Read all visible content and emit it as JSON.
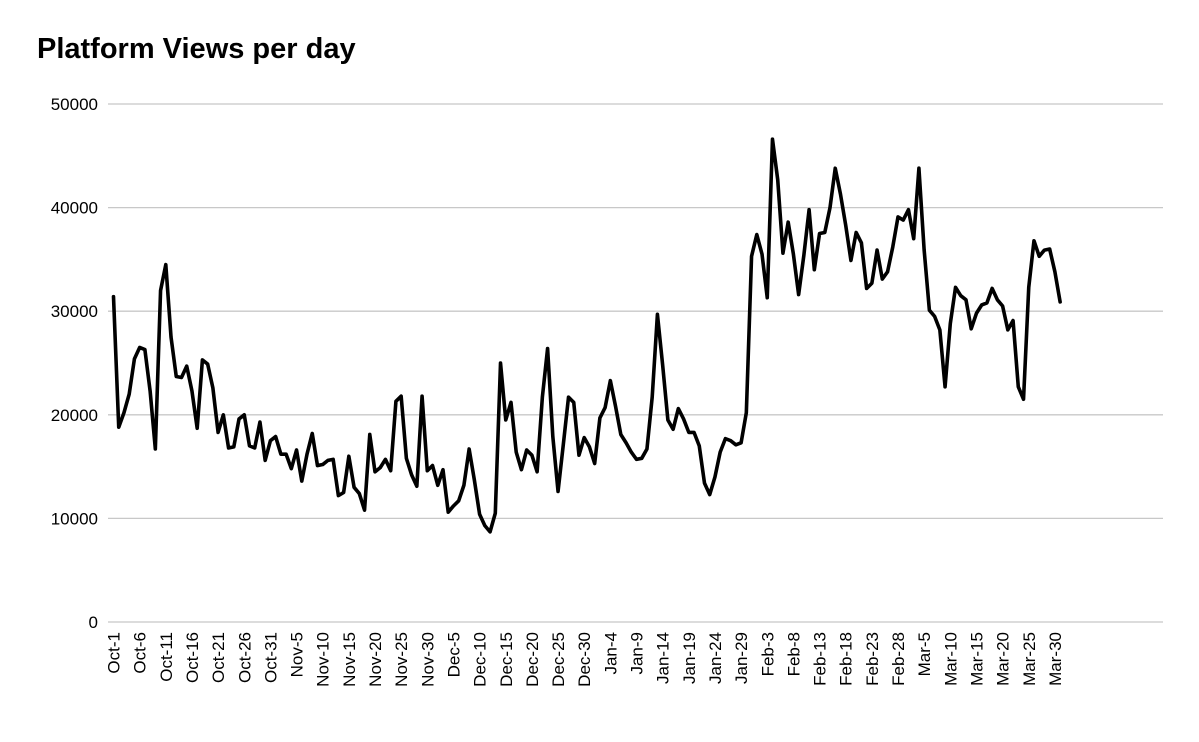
{
  "chart_data": {
    "type": "line",
    "title": "Platform Views per day",
    "xlabel": "",
    "ylabel": "",
    "ylim": [
      0,
      50000
    ],
    "yticks": [
      0,
      10000,
      20000,
      30000,
      40000,
      50000
    ],
    "grid": true,
    "legend": "none",
    "x_tick_labels": [
      "Oct-1",
      "Oct-6",
      "Oct-11",
      "Oct-16",
      "Oct-21",
      "Oct-26",
      "Oct-31",
      "Nov-5",
      "Nov-10",
      "Nov-15",
      "Nov-20",
      "Nov-25",
      "Nov-30",
      "Dec-5",
      "Dec-10",
      "Dec-15",
      "Dec-20",
      "Dec-25",
      "Dec-30",
      "Jan-4",
      "Jan-9",
      "Jan-14",
      "Jan-19",
      "Jan-24",
      "Jan-29",
      "Feb-3",
      "Feb-8",
      "Feb-13",
      "Feb-18",
      "Feb-23",
      "Feb-28",
      "Mar-5",
      "Mar-10",
      "Mar-15",
      "Mar-20",
      "Mar-25",
      "Mar-30"
    ],
    "series": [
      {
        "color": "#000000",
        "values": [
          31400,
          18800,
          20200,
          22000,
          25400,
          26500,
          26300,
          22300,
          16700,
          32000,
          34500,
          27500,
          23700,
          23600,
          24700,
          22300,
          18700,
          25300,
          24900,
          22600,
          18300,
          20000,
          16800,
          16900,
          19600,
          20000,
          17000,
          16800,
          19300,
          15600,
          17500,
          17900,
          16200,
          16200,
          14800,
          16600,
          13600,
          16200,
          18200,
          15100,
          15200,
          15600,
          15700,
          12200,
          12500,
          16000,
          13000,
          12400,
          10800,
          18100,
          14500,
          14900,
          15700,
          14600,
          21300,
          21800,
          15800,
          14200,
          13100,
          21800,
          14600,
          15100,
          13200,
          14700,
          10600,
          11200,
          11700,
          13200,
          16700,
          13700,
          10400,
          9300,
          8700,
          10500,
          25000,
          19500,
          21200,
          16400,
          14700,
          16600,
          16100,
          14500,
          21700,
          26400,
          17900,
          12600,
          17100,
          21700,
          21200,
          16100,
          17800,
          16900,
          15300,
          19700,
          20700,
          23300,
          20800,
          18100,
          17300,
          16400,
          15700,
          15800,
          16700,
          21700,
          29700,
          24800,
          19500,
          18600,
          20600,
          19600,
          18300,
          18300,
          17000,
          13400,
          12300,
          14000,
          16400,
          17700,
          17500,
          17100,
          17300,
          20200,
          35300,
          37400,
          35500,
          31300,
          46600,
          42700,
          35600,
          38600,
          35500,
          31600,
          35400,
          39800,
          34000,
          37500,
          37600,
          40000,
          43800,
          41300,
          38300,
          34900,
          37600,
          36600,
          32200,
          32700,
          35900,
          33100,
          33800,
          36200,
          39100,
          38800,
          39800,
          37000,
          43800,
          35900,
          30100,
          29500,
          28200,
          22700,
          28800,
          32300,
          31500,
          31100,
          28300,
          29800,
          30600,
          30800,
          32200,
          31100,
          30500,
          28200,
          29100,
          22700,
          21500,
          32300,
          36800,
          35300,
          35900,
          36000,
          33800,
          30900
        ]
      }
    ]
  }
}
